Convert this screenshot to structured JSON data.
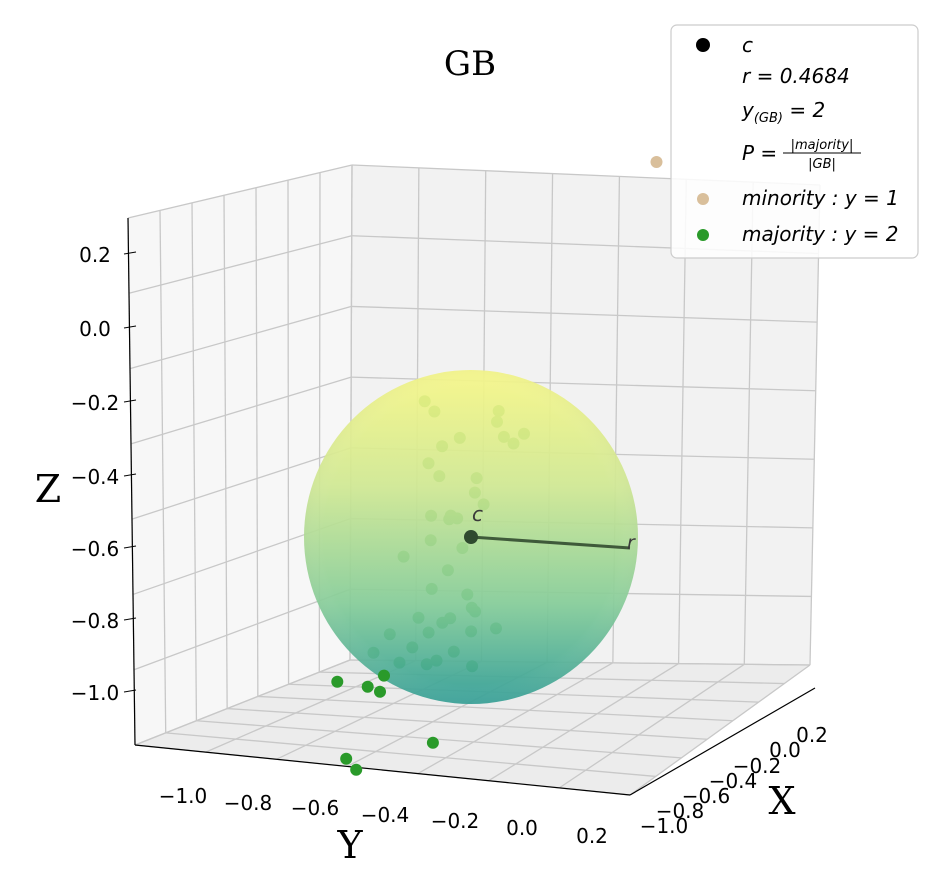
{
  "chart_data": {
    "type": "scatter3d",
    "title": "GB",
    "xlabel": "X",
    "ylabel": "Y",
    "zlabel": "Z",
    "x_ticks": [
      "−1.0",
      "−0.8",
      "−0.6",
      "−0.4",
      "−0.2",
      "0.0",
      "0.2"
    ],
    "y_ticks": [
      "−1.0",
      "−0.8",
      "−0.6",
      "−0.4",
      "−0.2",
      "0.0",
      "0.2"
    ],
    "z_ticks": [
      "0.2",
      "0.0",
      "−0.2",
      "−0.4",
      "−0.6",
      "−0.8",
      "−1.0"
    ],
    "ball": {
      "center_label": "c",
      "radius_label": "r",
      "colormap": [
        "#f7f785",
        "#a9d88f",
        "#4fb89a",
        "#2d9c95"
      ]
    },
    "legend": {
      "center": "c",
      "radius": "r = 0.4684",
      "label": "y",
      "label_sub": "(GB)",
      "label_value": " = 2",
      "purity_lhs": "P = ",
      "purity_num": "|majority|",
      "purity_den": "|GB|",
      "minority": "minority : y = 1",
      "majority": "majority : y = 2",
      "minority_color": "#d9bf9b",
      "majority_color": "#2a9a2a",
      "center_color": "#000000"
    },
    "series": [
      {
        "name": "minority : y = 1",
        "color": "#d9bf9b",
        "points": [
          [
            -1.05,
            -0.12,
            0.26
          ]
        ]
      },
      {
        "name": "majority : y = 2",
        "color": "#2a9a2a",
        "points": [
          [
            -0.58,
            -0.62,
            -0.34
          ],
          [
            -0.6,
            -0.6,
            -0.37
          ],
          [
            -0.58,
            -0.52,
            -0.43
          ],
          [
            -0.55,
            -0.56,
            -0.45
          ],
          [
            -0.68,
            -0.45,
            -0.4
          ],
          [
            -0.72,
            -0.46,
            -0.38
          ],
          [
            -0.6,
            -0.4,
            -0.42
          ],
          [
            -0.62,
            -0.38,
            -0.44
          ],
          [
            -0.55,
            -0.6,
            -0.5
          ],
          [
            -0.5,
            -0.55,
            -0.52
          ],
          [
            -0.48,
            -0.44,
            -0.55
          ],
          [
            -0.44,
            -0.4,
            -0.57
          ],
          [
            -0.7,
            -0.38,
            -0.43
          ],
          [
            -0.52,
            -0.45,
            -0.52
          ],
          [
            -0.46,
            -0.56,
            -0.62
          ],
          [
            -0.5,
            -0.5,
            -0.63
          ],
          [
            -0.35,
            -0.52,
            -0.66
          ],
          [
            -0.3,
            -0.58,
            -0.7
          ],
          [
            -0.32,
            -0.46,
            -0.73
          ],
          [
            -0.38,
            -0.44,
            -0.68
          ],
          [
            -0.3,
            -0.5,
            -0.78
          ],
          [
            -0.36,
            -0.42,
            -0.8
          ],
          [
            -0.34,
            -0.4,
            -0.83
          ],
          [
            -0.28,
            -0.44,
            -0.85
          ],
          [
            -0.26,
            -0.36,
            -0.82
          ],
          [
            -0.25,
            -0.52,
            -0.85
          ],
          [
            -0.22,
            -0.48,
            -0.88
          ],
          [
            -0.2,
            -0.52,
            -0.92
          ],
          [
            -0.24,
            -0.6,
            -0.9
          ],
          [
            -0.18,
            -0.55,
            -0.96
          ],
          [
            -0.15,
            -0.46,
            -0.95
          ],
          [
            -0.12,
            -0.42,
            -0.93
          ],
          [
            -0.14,
            -0.58,
            -0.99
          ],
          [
            -0.22,
            -0.44,
            -0.85
          ],
          [
            -0.28,
            -0.38,
            -0.88
          ],
          [
            -0.2,
            -0.4,
            -0.92
          ],
          [
            -0.26,
            -0.3,
            -0.86
          ],
          [
            -0.18,
            -0.34,
            -0.95
          ],
          [
            -0.12,
            -0.62,
            -1.02
          ],
          [
            -0.16,
            -0.6,
            -1.04
          ],
          [
            -0.1,
            -0.7,
            -1.01
          ],
          [
            -0.22,
            -0.64,
            -0.95
          ],
          [
            0.02,
            -0.38,
            -1.12
          ],
          [
            0.05,
            -0.62,
            -1.18
          ],
          [
            0.08,
            -0.58,
            -1.2
          ],
          [
            -0.44,
            -0.5,
            -0.62
          ],
          [
            -0.4,
            -0.48,
            -0.6
          ]
        ]
      }
    ]
  }
}
